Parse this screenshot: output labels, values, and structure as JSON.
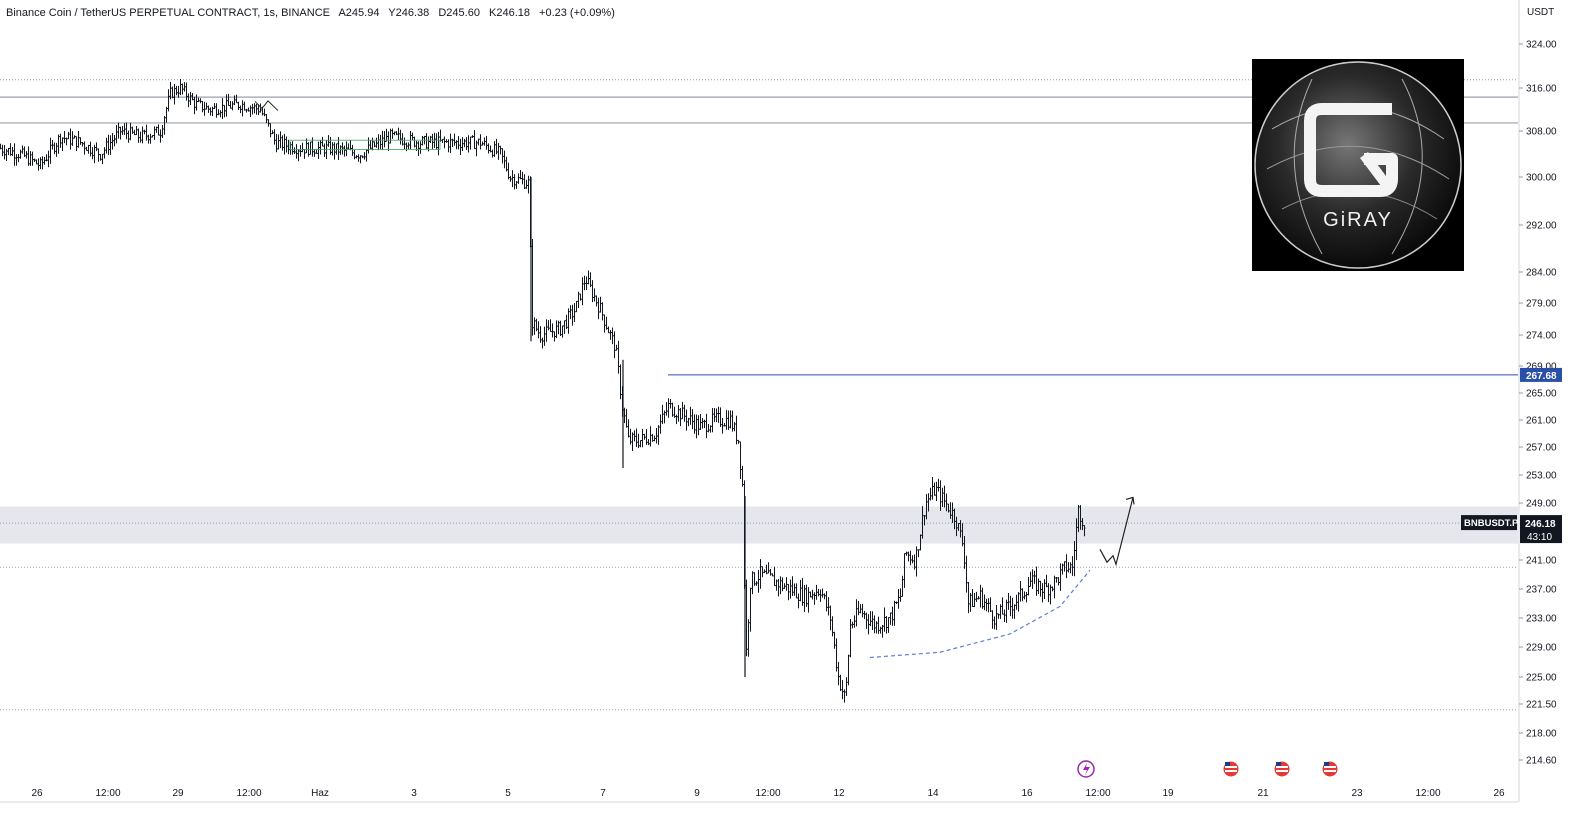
{
  "header": {
    "symbol": "Binance Coin / TetherUS PERPETUAL CONTRACT, 1s, BINANCE",
    "open": "A245.94",
    "high": "Y246.38",
    "low": "D245.60",
    "close": "K246.18",
    "change": "+0.23 (+0.09%)"
  },
  "price_axis": {
    "currency": "USDT",
    "ticks": [
      "324.00",
      "316.00",
      "308.00",
      "300.00",
      "292.00",
      "284.00",
      "279.00",
      "274.00",
      "269.00",
      "265.00",
      "261.00",
      "257.00",
      "253.00",
      "249.00",
      "241.00",
      "237.00",
      "233.00",
      "229.00",
      "225.00",
      "221.50",
      "218.00",
      "214.60"
    ],
    "level_label": "267.68",
    "current_price": "246.18",
    "countdown": "43:10",
    "symbol_tag": "BNBUSDT.P"
  },
  "time_axis": {
    "labels": [
      "26",
      "12:00",
      "29",
      "12:00",
      "Haz",
      "3",
      "5",
      "7",
      "9",
      "12:00",
      "12",
      "14",
      "16",
      "12:00",
      "19",
      "21",
      "23",
      "12:00",
      "26"
    ]
  },
  "logo": {
    "text": "GiRAY"
  },
  "colors": {
    "candle": "#131722",
    "level_line": "#2a4fa8",
    "zone": "#e6e7ec",
    "dashed_curve": "#5b7fd6",
    "axis_bg": "#ffffff"
  },
  "chart_data": {
    "type": "candlestick",
    "title": "Binance Coin / TetherUS PERPETUAL CONTRACT, 1s, BINANCE",
    "ylabel": "USDT",
    "ylim": [
      212,
      327
    ],
    "x_ticks": [
      "26",
      "12:00",
      "29",
      "12:00",
      "Haz",
      "3",
      "5",
      "7",
      "9",
      "12:00",
      "12",
      "14",
      "16",
      "12:00",
      "19",
      "21",
      "23",
      "12:00",
      "26"
    ],
    "price_path": [
      [
        0,
        305
      ],
      [
        20,
        304
      ],
      [
        40,
        302
      ],
      [
        60,
        307
      ],
      [
        80,
        306
      ],
      [
        100,
        304
      ],
      [
        120,
        308
      ],
      [
        140,
        307
      ],
      [
        160,
        308
      ],
      [
        170,
        315
      ],
      [
        180,
        316
      ],
      [
        195,
        313
      ],
      [
        210,
        312
      ],
      [
        240,
        313
      ],
      [
        260,
        312
      ],
      [
        275,
        306
      ],
      [
        300,
        305
      ],
      [
        330,
        305
      ],
      [
        360,
        304
      ],
      [
        390,
        307
      ],
      [
        420,
        306
      ],
      [
        450,
        306
      ],
      [
        480,
        306
      ],
      [
        500,
        304
      ],
      [
        510,
        300
      ],
      [
        528,
        299
      ],
      [
        532,
        276
      ],
      [
        540,
        274
      ],
      [
        560,
        275
      ],
      [
        575,
        278
      ],
      [
        585,
        283
      ],
      [
        600,
        278
      ],
      [
        615,
        272
      ],
      [
        622,
        263
      ],
      [
        628,
        258
      ],
      [
        640,
        258
      ],
      [
        655,
        259
      ],
      [
        668,
        263
      ],
      [
        680,
        262
      ],
      [
        700,
        260
      ],
      [
        715,
        261
      ],
      [
        730,
        261
      ],
      [
        738,
        258
      ],
      [
        743,
        250
      ],
      [
        745,
        226
      ],
      [
        750,
        238
      ],
      [
        760,
        239
      ],
      [
        775,
        238
      ],
      [
        790,
        237
      ],
      [
        805,
        236
      ],
      [
        820,
        237
      ],
      [
        830,
        233
      ],
      [
        838,
        225
      ],
      [
        845,
        222
      ],
      [
        850,
        232
      ],
      [
        860,
        234
      ],
      [
        875,
        232
      ],
      [
        890,
        233
      ],
      [
        900,
        236
      ],
      [
        905,
        242
      ],
      [
        915,
        241
      ],
      [
        925,
        249
      ],
      [
        935,
        251
      ],
      [
        945,
        249
      ],
      [
        955,
        247
      ],
      [
        963,
        243
      ],
      [
        968,
        235
      ],
      [
        980,
        236
      ],
      [
        995,
        233
      ],
      [
        1005,
        234
      ],
      [
        1020,
        236
      ],
      [
        1030,
        238
      ],
      [
        1045,
        237
      ],
      [
        1055,
        238
      ],
      [
        1065,
        240
      ],
      [
        1072,
        240
      ],
      [
        1078,
        248
      ],
      [
        1085,
        246
      ]
    ],
    "horizontal_levels": [
      {
        "price": 317.5,
        "style": "dotted"
      },
      {
        "price": 314.3,
        "style": "solid"
      },
      {
        "price": 309.5,
        "style": "solid"
      },
      {
        "price": 267.68,
        "style": "solid",
        "from_x": 668
      },
      {
        "price": 246.18,
        "style": "dotted"
      },
      {
        "price": 240.0,
        "style": "dotted"
      },
      {
        "price": 220.8,
        "style": "dotted"
      }
    ],
    "zone": {
      "top": 248.5,
      "bottom": 243.3
    },
    "arrow_path": [
      [
        1100,
        242.5
      ],
      [
        1107,
        240.7
      ],
      [
        1113,
        241.6
      ],
      [
        1116,
        240.4
      ],
      [
        1133,
        249.8
      ]
    ],
    "dashed_curve": [
      [
        870,
        227.6
      ],
      [
        940,
        228.3
      ],
      [
        1010,
        230.8
      ],
      [
        1060,
        234.6
      ],
      [
        1090,
        239.6
      ]
    ]
  }
}
